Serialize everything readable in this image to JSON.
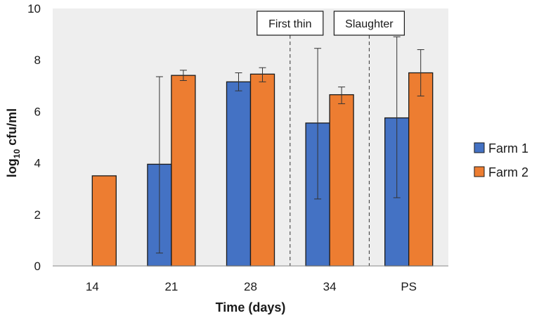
{
  "chart_data": {
    "type": "bar",
    "title": "",
    "xlabel": "Time (days)",
    "ylabel_main": "log",
    "ylabel_sub": "10",
    "ylabel_rest": " cfu/ml",
    "ylim": [
      0,
      10
    ],
    "yticks": [
      0,
      2,
      4,
      6,
      8,
      10
    ],
    "grid": false,
    "legend_position": "right",
    "categories": [
      "14",
      "21",
      "28",
      "34",
      "PS"
    ],
    "series": [
      {
        "name": "Farm 1",
        "color": "#4472C4",
        "values": [
          null,
          3.95,
          7.15,
          5.55,
          5.75
        ],
        "err_low": [
          null,
          0.5,
          6.8,
          2.6,
          2.65
        ],
        "err_high": [
          null,
          7.35,
          7.5,
          8.45,
          8.9
        ]
      },
      {
        "name": "Farm 2",
        "color": "#ED7D31",
        "values": [
          3.5,
          7.4,
          7.45,
          6.65,
          7.5
        ],
        "err_low": [
          null,
          7.2,
          7.15,
          6.3,
          6.6
        ],
        "err_high": [
          null,
          7.6,
          7.7,
          6.95,
          8.4
        ]
      }
    ],
    "annotations": [
      {
        "text": "First thin",
        "between": [
          2,
          3
        ]
      },
      {
        "text": "Slaughter",
        "between": [
          3,
          4
        ]
      }
    ],
    "background_color": "#EEEEEE"
  }
}
